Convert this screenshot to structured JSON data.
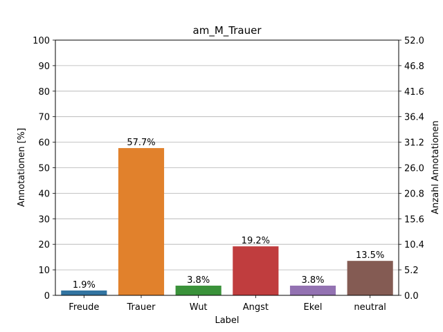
{
  "chart_data": {
    "type": "bar",
    "title": "am_M_Trauer",
    "xlabel": "Label",
    "ylabel": "Annotationen [%]",
    "ylabel_right": "Anzahl Annotationen",
    "ylim": [
      0,
      100
    ],
    "ylim_right": [
      0,
      52
    ],
    "yticks": [
      "0",
      "10",
      "20",
      "30",
      "40",
      "50",
      "60",
      "70",
      "80",
      "90",
      "100"
    ],
    "yticks_right": [
      "0.0",
      "5.2",
      "10.4",
      "15.6",
      "20.8",
      "26.0",
      "31.2",
      "36.4",
      "41.6",
      "46.8",
      "52.0"
    ],
    "grid": "horizontal",
    "categories": [
      "Freude",
      "Trauer",
      "Wut",
      "Angst",
      "Ekel",
      "neutral"
    ],
    "values": [
      1.9,
      57.7,
      3.8,
      19.2,
      3.8,
      13.5
    ],
    "data_labels": [
      "1.9%",
      "57.7%",
      "3.8%",
      "19.2%",
      "3.8%",
      "13.5%"
    ],
    "colors": [
      "#3274a1",
      "#e1812c",
      "#3a923a",
      "#c03d3e",
      "#9372b2",
      "#845b53"
    ]
  }
}
